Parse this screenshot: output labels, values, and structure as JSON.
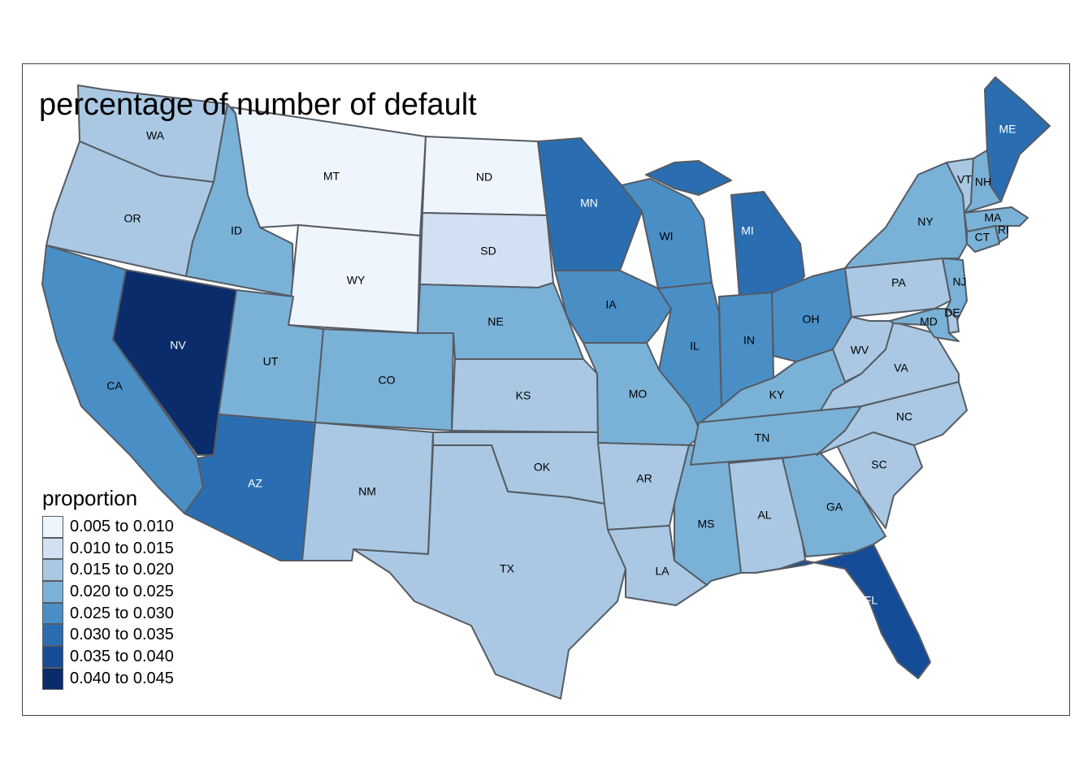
{
  "title": "percentage of number of default",
  "legend": {
    "title": "proportion",
    "items": [
      {
        "label": "0.005 to 0.010",
        "color": "#eff5fd"
      },
      {
        "label": "0.010 to 0.015",
        "color": "#d1e0f2"
      },
      {
        "label": "0.015 to 0.020",
        "color": "#aac8e3"
      },
      {
        "label": "0.020 to 0.025",
        "color": "#7ab1d7"
      },
      {
        "label": "0.025 to 0.030",
        "color": "#4a8ec6"
      },
      {
        "label": "0.030 to 0.035",
        "color": "#2a6eb1"
      },
      {
        "label": "0.035 to 0.040",
        "color": "#154c98"
      },
      {
        "label": "0.040 to 0.045",
        "color": "#0b2c6a"
      }
    ]
  },
  "states": [
    {
      "abbr": "WA",
      "bin": 2
    },
    {
      "abbr": "OR",
      "bin": 2
    },
    {
      "abbr": "CA",
      "bin": 4
    },
    {
      "abbr": "NV",
      "bin": 7
    },
    {
      "abbr": "ID",
      "bin": 3
    },
    {
      "abbr": "MT",
      "bin": 0
    },
    {
      "abbr": "WY",
      "bin": 0
    },
    {
      "abbr": "UT",
      "bin": 3
    },
    {
      "abbr": "AZ",
      "bin": 5
    },
    {
      "abbr": "CO",
      "bin": 3
    },
    {
      "abbr": "NM",
      "bin": 2
    },
    {
      "abbr": "ND",
      "bin": 0
    },
    {
      "abbr": "SD",
      "bin": 1
    },
    {
      "abbr": "NE",
      "bin": 3
    },
    {
      "abbr": "KS",
      "bin": 2
    },
    {
      "abbr": "OK",
      "bin": 2
    },
    {
      "abbr": "TX",
      "bin": 2
    },
    {
      "abbr": "MN",
      "bin": 5
    },
    {
      "abbr": "IA",
      "bin": 4
    },
    {
      "abbr": "MO",
      "bin": 3
    },
    {
      "abbr": "AR",
      "bin": 2
    },
    {
      "abbr": "LA",
      "bin": 2
    },
    {
      "abbr": "WI",
      "bin": 4
    },
    {
      "abbr": "IL",
      "bin": 4
    },
    {
      "abbr": "MS",
      "bin": 3
    },
    {
      "abbr": "MI",
      "bin": 5
    },
    {
      "abbr": "IN",
      "bin": 4
    },
    {
      "abbr": "OH",
      "bin": 4
    },
    {
      "abbr": "KY",
      "bin": 3
    },
    {
      "abbr": "TN",
      "bin": 3
    },
    {
      "abbr": "AL",
      "bin": 2
    },
    {
      "abbr": "GA",
      "bin": 3
    },
    {
      "abbr": "FL",
      "bin": 6
    },
    {
      "abbr": "SC",
      "bin": 2
    },
    {
      "abbr": "NC",
      "bin": 2
    },
    {
      "abbr": "VA",
      "bin": 2
    },
    {
      "abbr": "WV",
      "bin": 2
    },
    {
      "abbr": "PA",
      "bin": 2
    },
    {
      "abbr": "NY",
      "bin": 3
    },
    {
      "abbr": "NJ",
      "bin": 3
    },
    {
      "abbr": "DE",
      "bin": 2
    },
    {
      "abbr": "MD",
      "bin": 3
    },
    {
      "abbr": "CT",
      "bin": 3
    },
    {
      "abbr": "RI",
      "bin": 3
    },
    {
      "abbr": "MA",
      "bin": 3
    },
    {
      "abbr": "VT",
      "bin": 2
    },
    {
      "abbr": "NH",
      "bin": 3
    },
    {
      "abbr": "ME",
      "bin": 5
    }
  ]
}
